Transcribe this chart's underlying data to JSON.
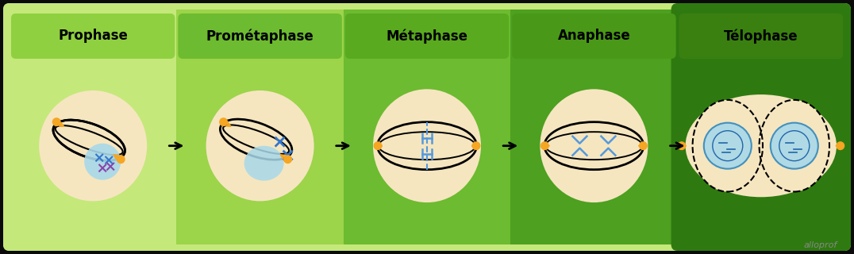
{
  "phases": [
    "Prophase",
    "Prométaphase",
    "Métaphase",
    "Anaphase",
    "Télophase"
  ],
  "bg_colors": [
    "#c5e87a",
    "#9cd44a",
    "#6dbb30",
    "#4da020",
    "#2e7a10"
  ],
  "header_colors": [
    "#8fd040",
    "#6dbb30",
    "#5aaa20",
    "#4a9818",
    "#3a8010"
  ],
  "outer_bg": "#0a0a0a",
  "cell_fill": "#f5e6c0",
  "nucleus_fill": "#a8d8ea",
  "orange": "#f5a623",
  "spindle_blue": "#5599dd",
  "chrom_blue": "#3377cc",
  "chrom_purple": "#8844aa",
  "watermark": "alloprof",
  "watermark_color": "#888888"
}
